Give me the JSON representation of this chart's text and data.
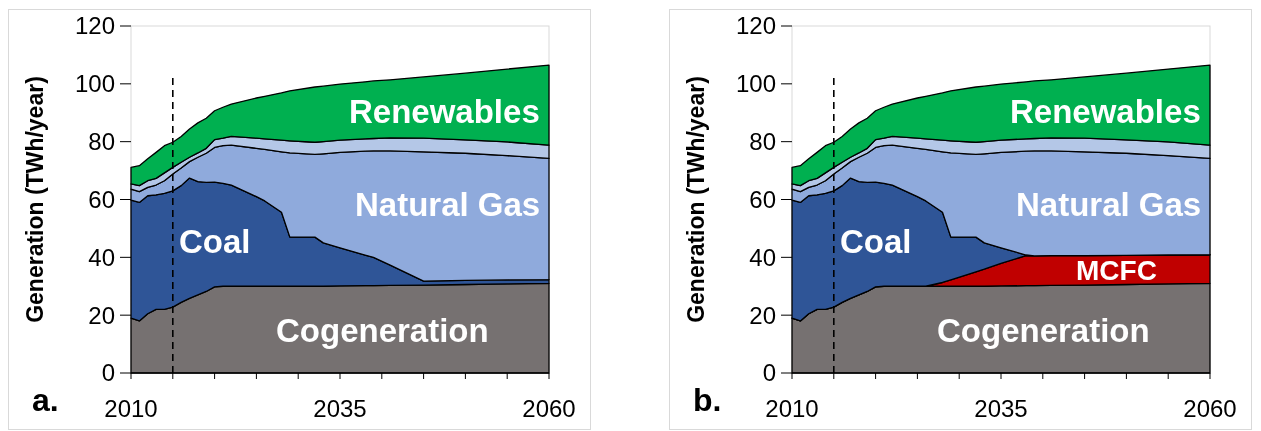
{
  "chart_data": [
    {
      "type": "area",
      "stacked": true,
      "title": "a.",
      "ylabel": "Generation (TWh/year)",
      "x": [
        2010,
        2011,
        2012,
        2013,
        2014,
        2015,
        2016,
        2017,
        2018,
        2019,
        2020,
        2021,
        2022,
        2025,
        2026,
        2028,
        2029,
        2032,
        2033,
        2035,
        2038,
        2039,
        2041,
        2045,
        2050,
        2055,
        2060
      ],
      "xlim": [
        2010,
        2060
      ],
      "xticks": [
        2010,
        {
          "value": 2015,
          "label": null
        },
        {
          "value": 2020,
          "label": null
        },
        {
          "value": 2025,
          "label": null
        },
        {
          "value": 2030,
          "label": null
        },
        2035,
        {
          "value": 2040,
          "label": null
        },
        {
          "value": 2045,
          "label": null
        },
        {
          "value": 2050,
          "label": null
        },
        {
          "value": 2055,
          "label": null
        },
        2060
      ],
      "ylim": [
        0,
        120
      ],
      "yticks": [
        0,
        20,
        40,
        60,
        80,
        100,
        120
      ],
      "ref_lines": [
        {
          "axis": "x",
          "value": 2015,
          "line_style": "dashed",
          "color": "#000000"
        }
      ],
      "series": [
        {
          "name": "Cogeneration",
          "color": "#767171",
          "values": [
            19.0,
            18.0,
            20.5,
            22.0,
            22.0,
            22.8,
            24.4,
            25.8,
            27.0,
            28.2,
            29.8,
            30.0,
            30.0,
            30.0,
            30.0,
            30.0,
            30.0,
            30.0,
            30.0,
            30.1,
            30.2,
            30.2,
            30.3,
            30.4,
            30.6,
            30.8,
            31.0
          ]
        },
        {
          "name": "Coal",
          "color": "#2f5597",
          "values": [
            40.8,
            41.0,
            40.8,
            39.6,
            40.1,
            40.2,
            40.4,
            41.6,
            39.2,
            37.7,
            36.2,
            35.6,
            35.0,
            31.0,
            29.5,
            25.6,
            17.0,
            17.0,
            15.0,
            13.2,
            10.6,
            9.8,
            7.0,
            1.4,
            1.4,
            1.4,
            1.3
          ]
        },
        {
          "name": "Natural Gas",
          "color": "#8faadc",
          "values": [
            3.8,
            3.7,
            2.9,
            3.4,
            4.4,
            5.8,
            6.1,
            5.7,
            8.4,
            10.1,
            12.0,
            13.0,
            13.8,
            16.7,
            17.8,
            20.9,
            29.1,
            28.6,
            30.8,
            33.0,
            35.9,
            36.8,
            39.5,
            44.7,
            44.0,
            43.0,
            41.9
          ]
        },
        {
          "color": "#b4c7e7",
          "values": [
            1.8,
            2.1,
            2.3,
            2.3,
            2.7,
            2.3,
            2.0,
            1.5,
            1.5,
            1.7,
            2.7,
            2.6,
            3.0,
            3.5,
            3.7,
            4.0,
            4.2,
            4.2,
            4.2,
            4.2,
            4.3,
            4.3,
            4.5,
            4.7,
            4.6,
            4.7,
            4.6
          ]
        },
        {
          "name": "Renewables",
          "color": "#00b050",
          "values": [
            5.7,
            6.9,
            7.6,
            9.0,
            9.4,
            8.7,
            8.9,
            9.8,
            10.4,
            10.4,
            10.0,
            10.7,
            11.2,
            13.9,
            14.7,
            16.4,
            17.3,
            19.1,
            19.2,
            19.4,
            19.7,
            19.9,
            20.1,
            21.2,
            23.1,
            25.2,
            27.7
          ]
        }
      ]
    },
    {
      "type": "area",
      "stacked": true,
      "title": "b.",
      "ylabel": "Generation (TWh/year)",
      "x": [
        2010,
        2011,
        2012,
        2013,
        2014,
        2015,
        2016,
        2017,
        2018,
        2019,
        2020,
        2021,
        2022,
        2025,
        2026,
        2028,
        2029,
        2032,
        2033,
        2035,
        2038,
        2039,
        2041,
        2045,
        2050,
        2055,
        2060
      ],
      "xlim": [
        2010,
        2060
      ],
      "xticks": [
        2010,
        {
          "value": 2015,
          "label": null
        },
        {
          "value": 2020,
          "label": null
        },
        {
          "value": 2025,
          "label": null
        },
        {
          "value": 2030,
          "label": null
        },
        2035,
        {
          "value": 2040,
          "label": null
        },
        {
          "value": 2045,
          "label": null
        },
        {
          "value": 2050,
          "label": null
        },
        {
          "value": 2055,
          "label": null
        },
        2060
      ],
      "ylim": [
        0,
        120
      ],
      "yticks": [
        0,
        20,
        40,
        60,
        80,
        100,
        120
      ],
      "ref_lines": [
        {
          "axis": "x",
          "value": 2015,
          "line_style": "dashed",
          "color": "#000000"
        }
      ],
      "series": [
        {
          "name": "Cogeneration",
          "color": "#767171",
          "values": [
            19.0,
            18.0,
            20.5,
            22.0,
            22.0,
            22.8,
            24.4,
            25.8,
            27.0,
            28.2,
            29.8,
            30.0,
            30.0,
            30.0,
            30.0,
            30.0,
            30.0,
            30.0,
            30.0,
            30.1,
            30.2,
            30.2,
            30.3,
            30.4,
            30.6,
            30.8,
            31.0
          ]
        },
        {
          "name": "MCFC",
          "color": "#c00000",
          "values": [
            0,
            0,
            0,
            0,
            0,
            0,
            0,
            0,
            0,
            0,
            0,
            0,
            0,
            0,
            0,
            1.3,
            2.2,
            5.0,
            5.9,
            7.8,
            10.4,
            10.3,
            10.3,
            10.2,
            10.1,
            10.0,
            9.9
          ]
        },
        {
          "name": "Coal",
          "color": "#2f5597",
          "values": [
            40.8,
            41.0,
            40.8,
            39.6,
            40.1,
            40.2,
            40.4,
            41.6,
            39.2,
            37.7,
            36.2,
            35.6,
            35.0,
            31.0,
            29.5,
            24.3,
            14.8,
            12.0,
            9.1,
            5.4,
            0.2,
            0,
            0,
            0,
            0,
            0,
            0
          ]
        },
        {
          "name": "Natural Gas",
          "color": "#8faadc",
          "values": [
            3.8,
            3.7,
            2.9,
            3.4,
            4.4,
            5.8,
            6.1,
            5.7,
            8.4,
            10.1,
            12.0,
            13.0,
            13.8,
            16.7,
            17.8,
            20.9,
            29.1,
            28.6,
            30.8,
            33.0,
            35.9,
            36.3,
            36.2,
            35.9,
            35.3,
            34.4,
            33.3
          ]
        },
        {
          "color": "#b4c7e7",
          "values": [
            1.8,
            2.1,
            2.3,
            2.3,
            2.7,
            2.3,
            2.0,
            1.5,
            1.5,
            1.7,
            2.7,
            2.6,
            3.0,
            3.5,
            3.7,
            4.0,
            4.2,
            4.2,
            4.2,
            4.2,
            4.3,
            4.3,
            4.5,
            4.7,
            4.6,
            4.7,
            4.6
          ]
        },
        {
          "name": "Renewables",
          "color": "#00b050",
          "values": [
            5.7,
            6.9,
            7.6,
            9.0,
            9.4,
            8.7,
            8.9,
            9.8,
            10.4,
            10.4,
            10.0,
            10.7,
            11.2,
            13.9,
            14.7,
            16.4,
            17.3,
            19.1,
            19.2,
            19.4,
            19.7,
            19.9,
            20.1,
            21.2,
            23.1,
            25.2,
            27.7
          ]
        }
      ]
    }
  ]
}
